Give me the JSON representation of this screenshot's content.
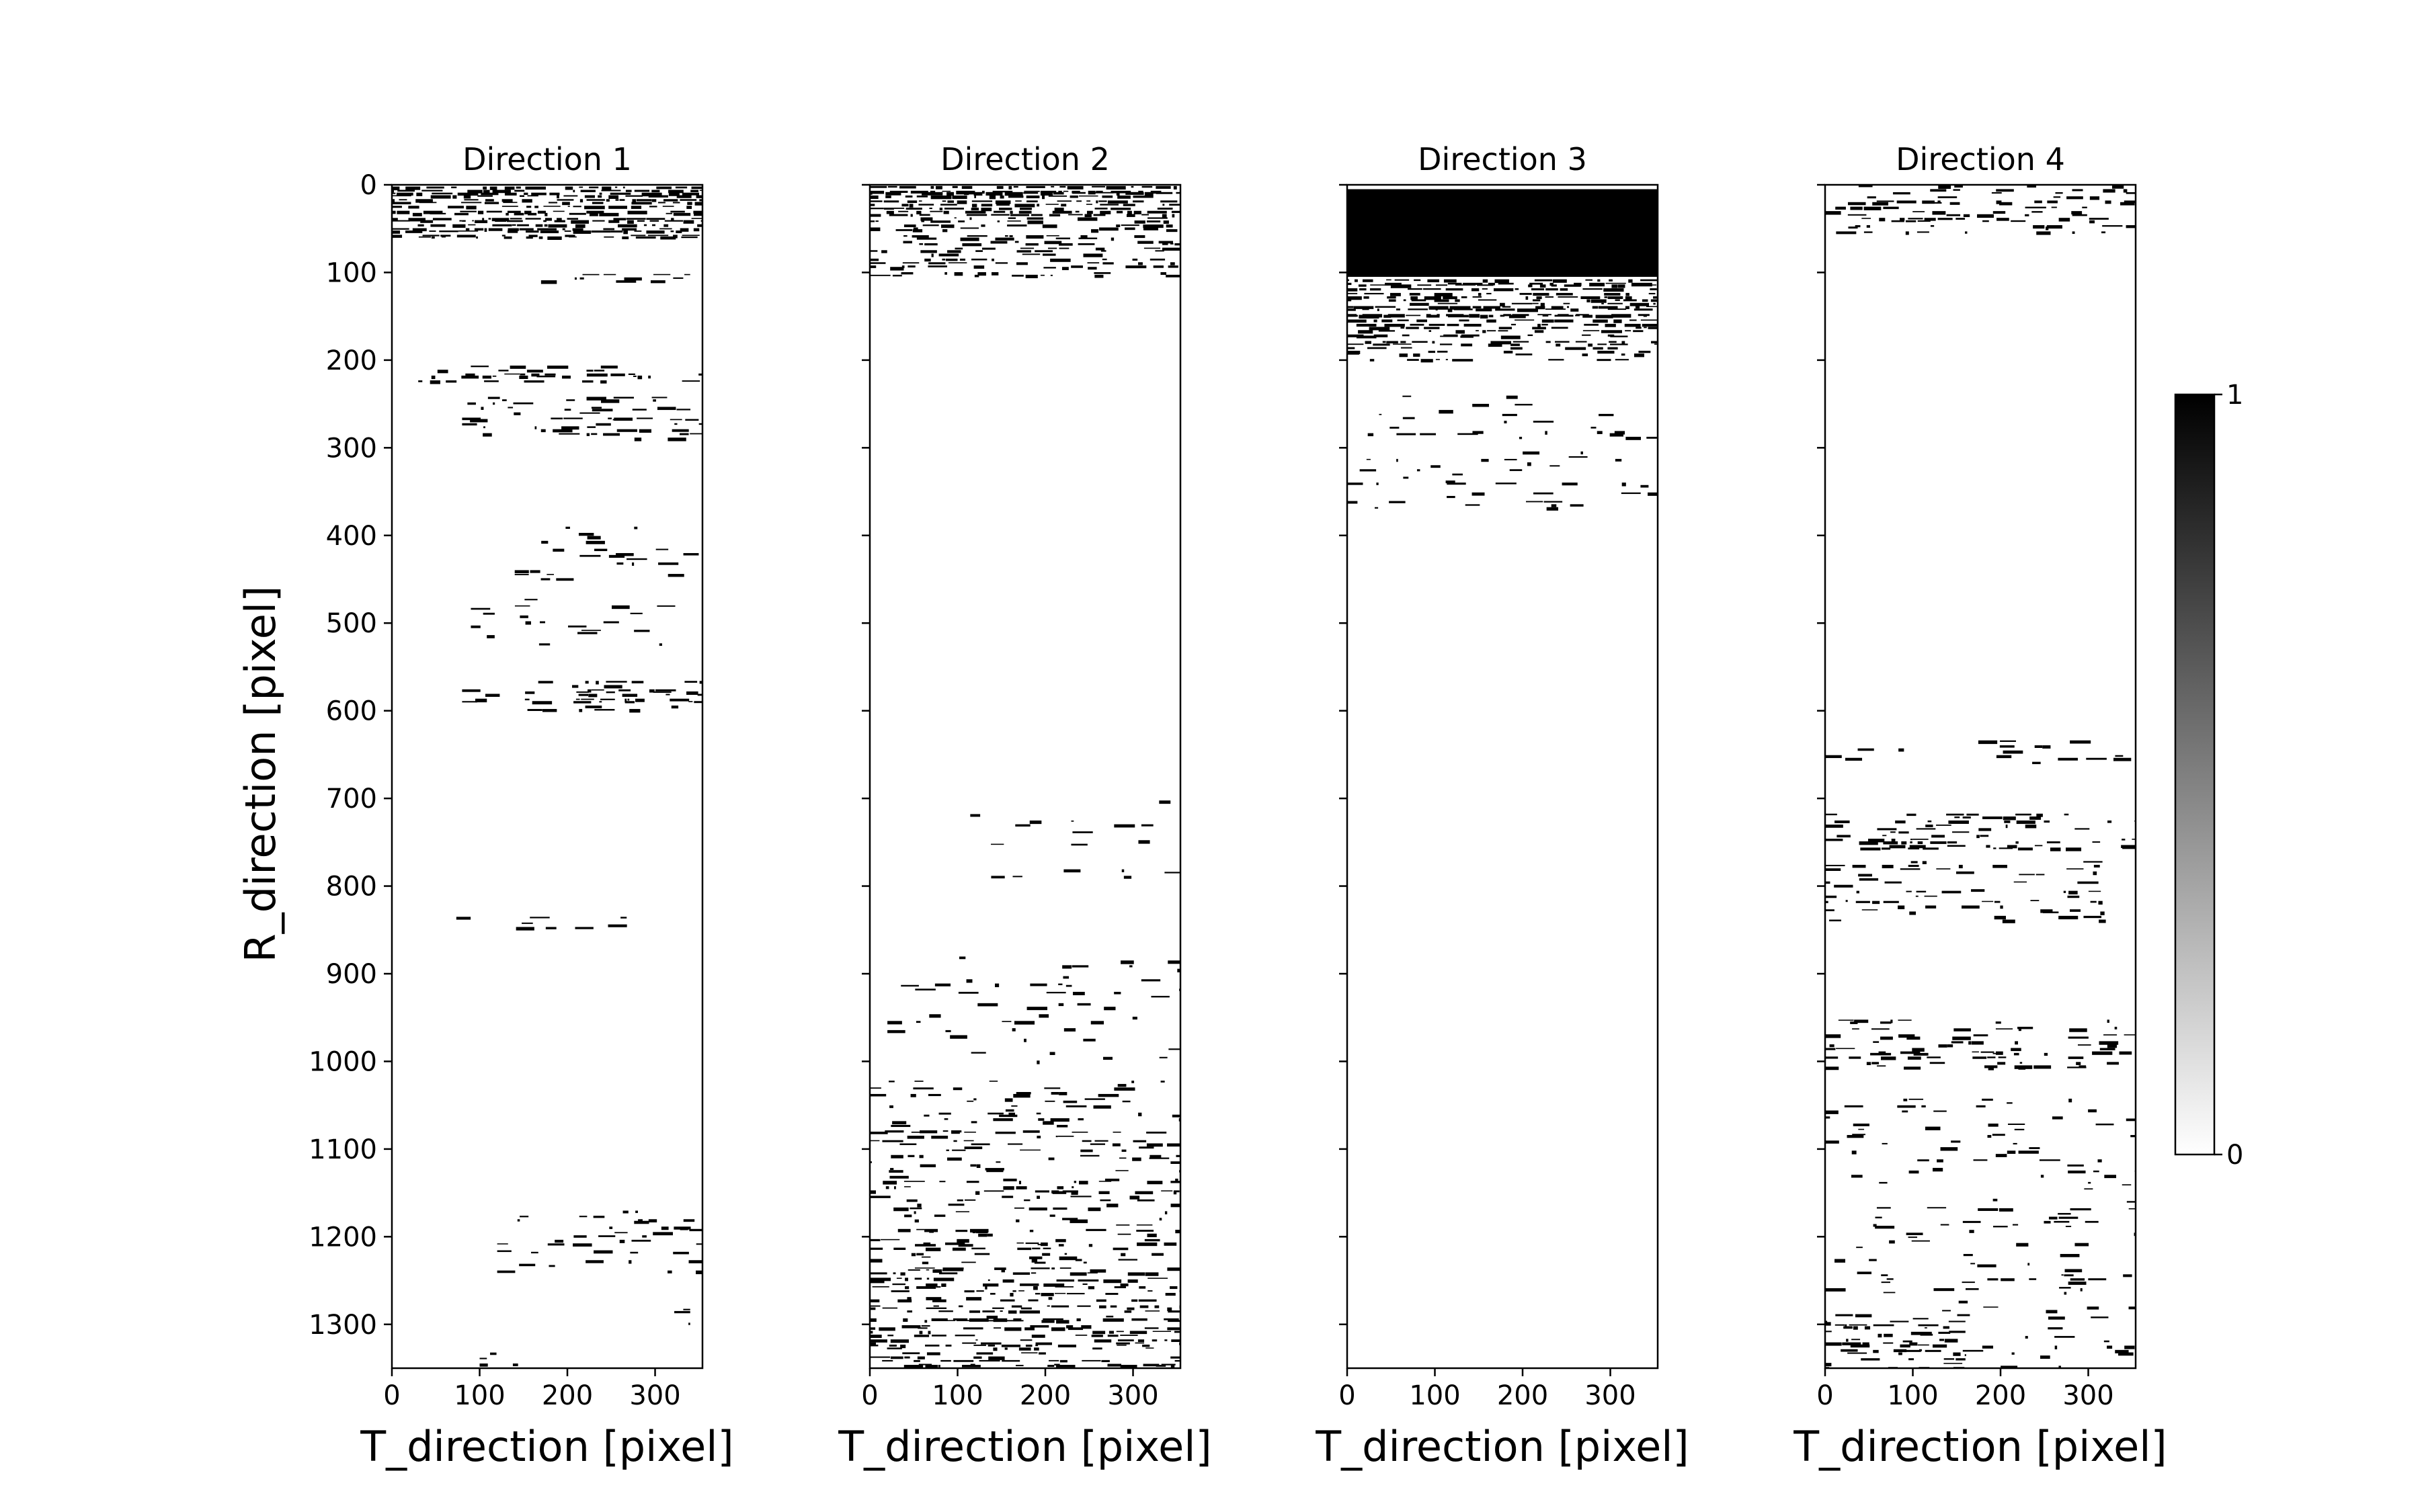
{
  "chart_data": {
    "type": "heatmap",
    "ylabel": "R_direction [pixel]",
    "yticks": [
      0,
      100,
      200,
      300,
      400,
      500,
      600,
      700,
      800,
      900,
      1000,
      1100,
      1200,
      1300
    ],
    "ylim": [
      1350,
      0
    ],
    "xlim": [
      0,
      354
    ],
    "xticks": [
      0,
      100,
      200,
      300
    ],
    "colorbar": {
      "min": 0,
      "max": 1,
      "tick_labels": [
        "1",
        "0"
      ],
      "colormap": "white-to-black"
    },
    "colors": {
      "ink": "#000000",
      "background": "#ffffff"
    },
    "panels": [
      {
        "title": "Direction 1",
        "xlabel": "T_direction [pixel]",
        "bands": [
          {
            "r_start": 0,
            "r_end": 62,
            "t_start": 0,
            "t_end": 354,
            "fill": 0.75
          },
          {
            "r_start": 100,
            "r_end": 110,
            "t_start": 170,
            "t_end": 340,
            "fill": 0.3
          },
          {
            "r_start": 205,
            "r_end": 225,
            "t_start": 30,
            "t_end": 354,
            "fill": 0.35
          },
          {
            "r_start": 240,
            "r_end": 290,
            "t_start": 80,
            "t_end": 354,
            "fill": 0.3
          },
          {
            "r_start": 390,
            "r_end": 450,
            "t_start": 140,
            "t_end": 354,
            "fill": 0.12
          },
          {
            "r_start": 470,
            "r_end": 525,
            "t_start": 90,
            "t_end": 340,
            "fill": 0.12
          },
          {
            "r_start": 565,
            "r_end": 600,
            "t_start": 80,
            "t_end": 354,
            "fill": 0.35
          },
          {
            "r_start": 835,
            "r_end": 850,
            "t_start": 60,
            "t_end": 320,
            "fill": 0.08
          },
          {
            "r_start": 1170,
            "r_end": 1240,
            "t_start": 120,
            "t_end": 354,
            "fill": 0.12
          },
          {
            "r_start": 1280,
            "r_end": 1300,
            "t_start": 300,
            "t_end": 340,
            "fill": 0.2
          },
          {
            "r_start": 1330,
            "r_end": 1350,
            "t_start": 100,
            "t_end": 160,
            "fill": 0.2
          }
        ]
      },
      {
        "title": "Direction 2",
        "xlabel": "T_direction [pixel]",
        "bands": [
          {
            "r_start": 0,
            "r_end": 35,
            "t_start": 0,
            "t_end": 354,
            "fill": 0.85
          },
          {
            "r_start": 35,
            "r_end": 105,
            "t_start": 0,
            "t_end": 354,
            "fill": 0.35
          },
          {
            "r_start": 700,
            "r_end": 790,
            "t_start": 70,
            "t_end": 354,
            "fill": 0.04
          },
          {
            "r_start": 880,
            "r_end": 1000,
            "t_start": 20,
            "t_end": 354,
            "fill": 0.08
          },
          {
            "r_start": 1020,
            "r_end": 1240,
            "t_start": 0,
            "t_end": 354,
            "fill": 0.22
          },
          {
            "r_start": 1240,
            "r_end": 1350,
            "t_start": 0,
            "t_end": 354,
            "fill": 0.4
          }
        ]
      },
      {
        "title": "Direction 3",
        "xlabel": "T_direction [pixel]",
        "bands": [
          {
            "r_start": 5,
            "r_end": 105,
            "t_start": 0,
            "t_end": 354,
            "fill": 1.0
          },
          {
            "r_start": 105,
            "r_end": 160,
            "t_start": 0,
            "t_end": 354,
            "fill": 0.7
          },
          {
            "r_start": 160,
            "r_end": 200,
            "t_start": 0,
            "t_end": 354,
            "fill": 0.4
          },
          {
            "r_start": 240,
            "r_end": 370,
            "t_start": 0,
            "t_end": 354,
            "fill": 0.1
          }
        ]
      },
      {
        "title": "Direction 4",
        "xlabel": "T_direction [pixel]",
        "bands": [
          {
            "r_start": 0,
            "r_end": 55,
            "t_start": 0,
            "t_end": 354,
            "fill": 0.3
          },
          {
            "r_start": 630,
            "r_end": 660,
            "t_start": 0,
            "t_end": 354,
            "fill": 0.15
          },
          {
            "r_start": 715,
            "r_end": 760,
            "t_start": 0,
            "t_end": 354,
            "fill": 0.3
          },
          {
            "r_start": 770,
            "r_end": 840,
            "t_start": 0,
            "t_end": 320,
            "fill": 0.2
          },
          {
            "r_start": 950,
            "r_end": 1010,
            "t_start": 0,
            "t_end": 354,
            "fill": 0.25
          },
          {
            "r_start": 1040,
            "r_end": 1350,
            "t_start": 0,
            "t_end": 354,
            "fill": 0.1
          },
          {
            "r_start": 1290,
            "r_end": 1350,
            "t_start": 0,
            "t_end": 160,
            "fill": 0.3
          }
        ]
      }
    ]
  }
}
